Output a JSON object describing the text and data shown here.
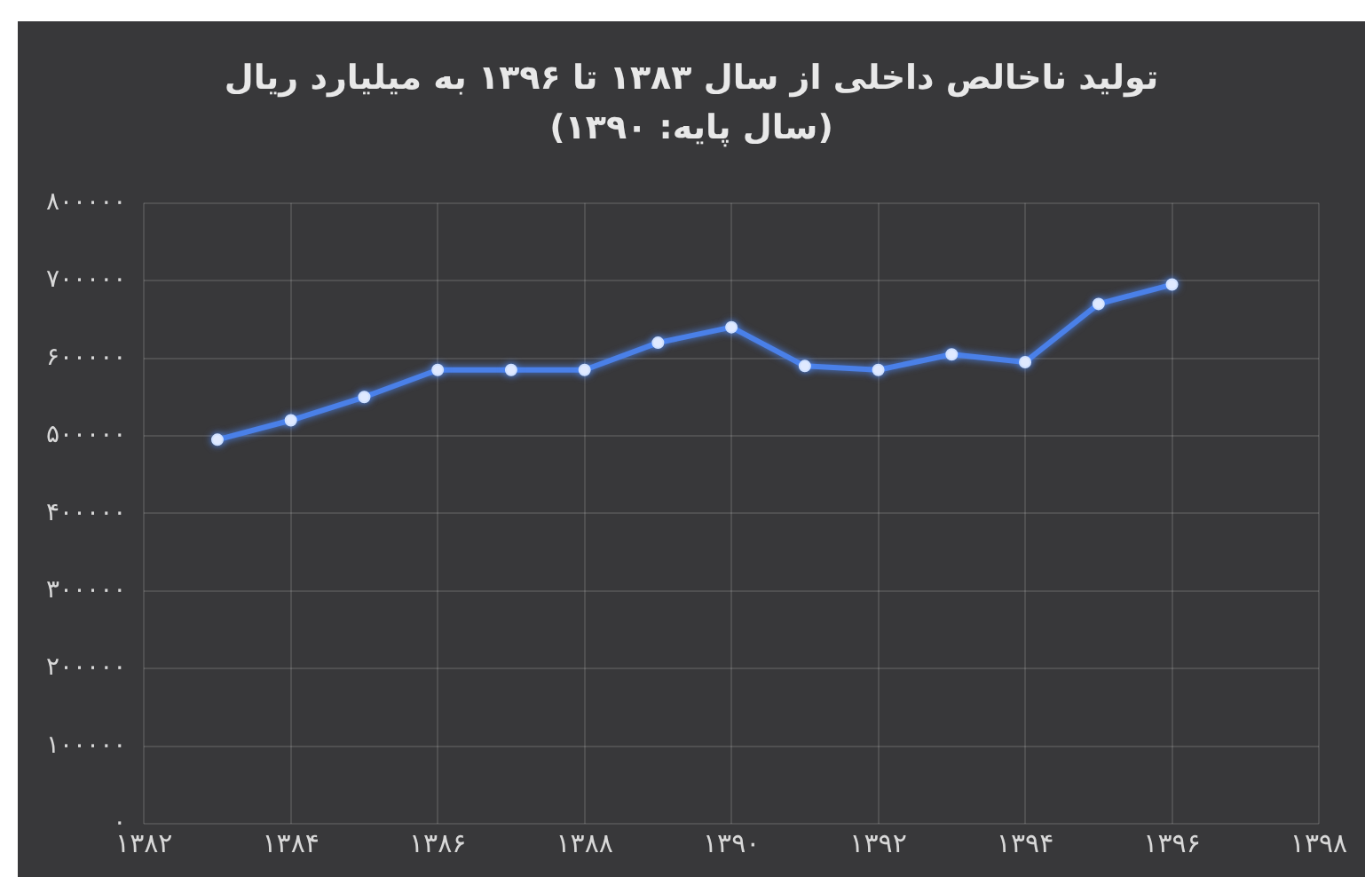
{
  "chart_data": {
    "type": "line",
    "title": "تولید ناخالص داخلی از سال ۱۳۸۳ تا ۱۳۹۶ به میلیارد ریال",
    "subtitle": "(سال پایه: ۱۳۹۰)",
    "x": [
      1383,
      1384,
      1385,
      1386,
      1387,
      1388,
      1389,
      1390,
      1391,
      1392,
      1393,
      1394,
      1395,
      1396
    ],
    "series": [
      {
        "color": "#4a80e8",
        "values": [
          495000,
          520000,
          550000,
          585000,
          585000,
          585000,
          620000,
          640000,
          590000,
          585000,
          605000,
          595000,
          670000,
          695000
        ]
      }
    ],
    "xlim": [
      1382,
      1398
    ],
    "xticks": [
      {
        "value": 1382,
        "label": "۱۳۸۲"
      },
      {
        "value": 1384,
        "label": "۱۳۸۴"
      },
      {
        "value": 1386,
        "label": "۱۳۸۶"
      },
      {
        "value": 1388,
        "label": "۱۳۸۸"
      },
      {
        "value": 1390,
        "label": "۱۳۹۰"
      },
      {
        "value": 1392,
        "label": "۱۳۹۲"
      },
      {
        "value": 1394,
        "label": "۱۳۹۴"
      },
      {
        "value": 1396,
        "label": "۱۳۹۶"
      },
      {
        "value": 1398,
        "label": "۱۳۹۸"
      }
    ],
    "ylim": [
      0,
      800000
    ],
    "yticks": [
      {
        "value": 0,
        "label": "۰"
      },
      {
        "value": 100000,
        "label": "۱۰۰۰۰۰"
      },
      {
        "value": 200000,
        "label": "۲۰۰۰۰۰"
      },
      {
        "value": 300000,
        "label": "۳۰۰۰۰۰"
      },
      {
        "value": 400000,
        "label": "۴۰۰۰۰۰"
      },
      {
        "value": 500000,
        "label": "۵۰۰۰۰۰"
      },
      {
        "value": 600000,
        "label": "۶۰۰۰۰۰"
      },
      {
        "value": 700000,
        "label": "۷۰۰۰۰۰"
      },
      {
        "value": 800000,
        "label": "۸۰۰۰۰۰"
      }
    ],
    "grid": true,
    "marker": "circle",
    "line_style": "solid",
    "legend": false
  }
}
